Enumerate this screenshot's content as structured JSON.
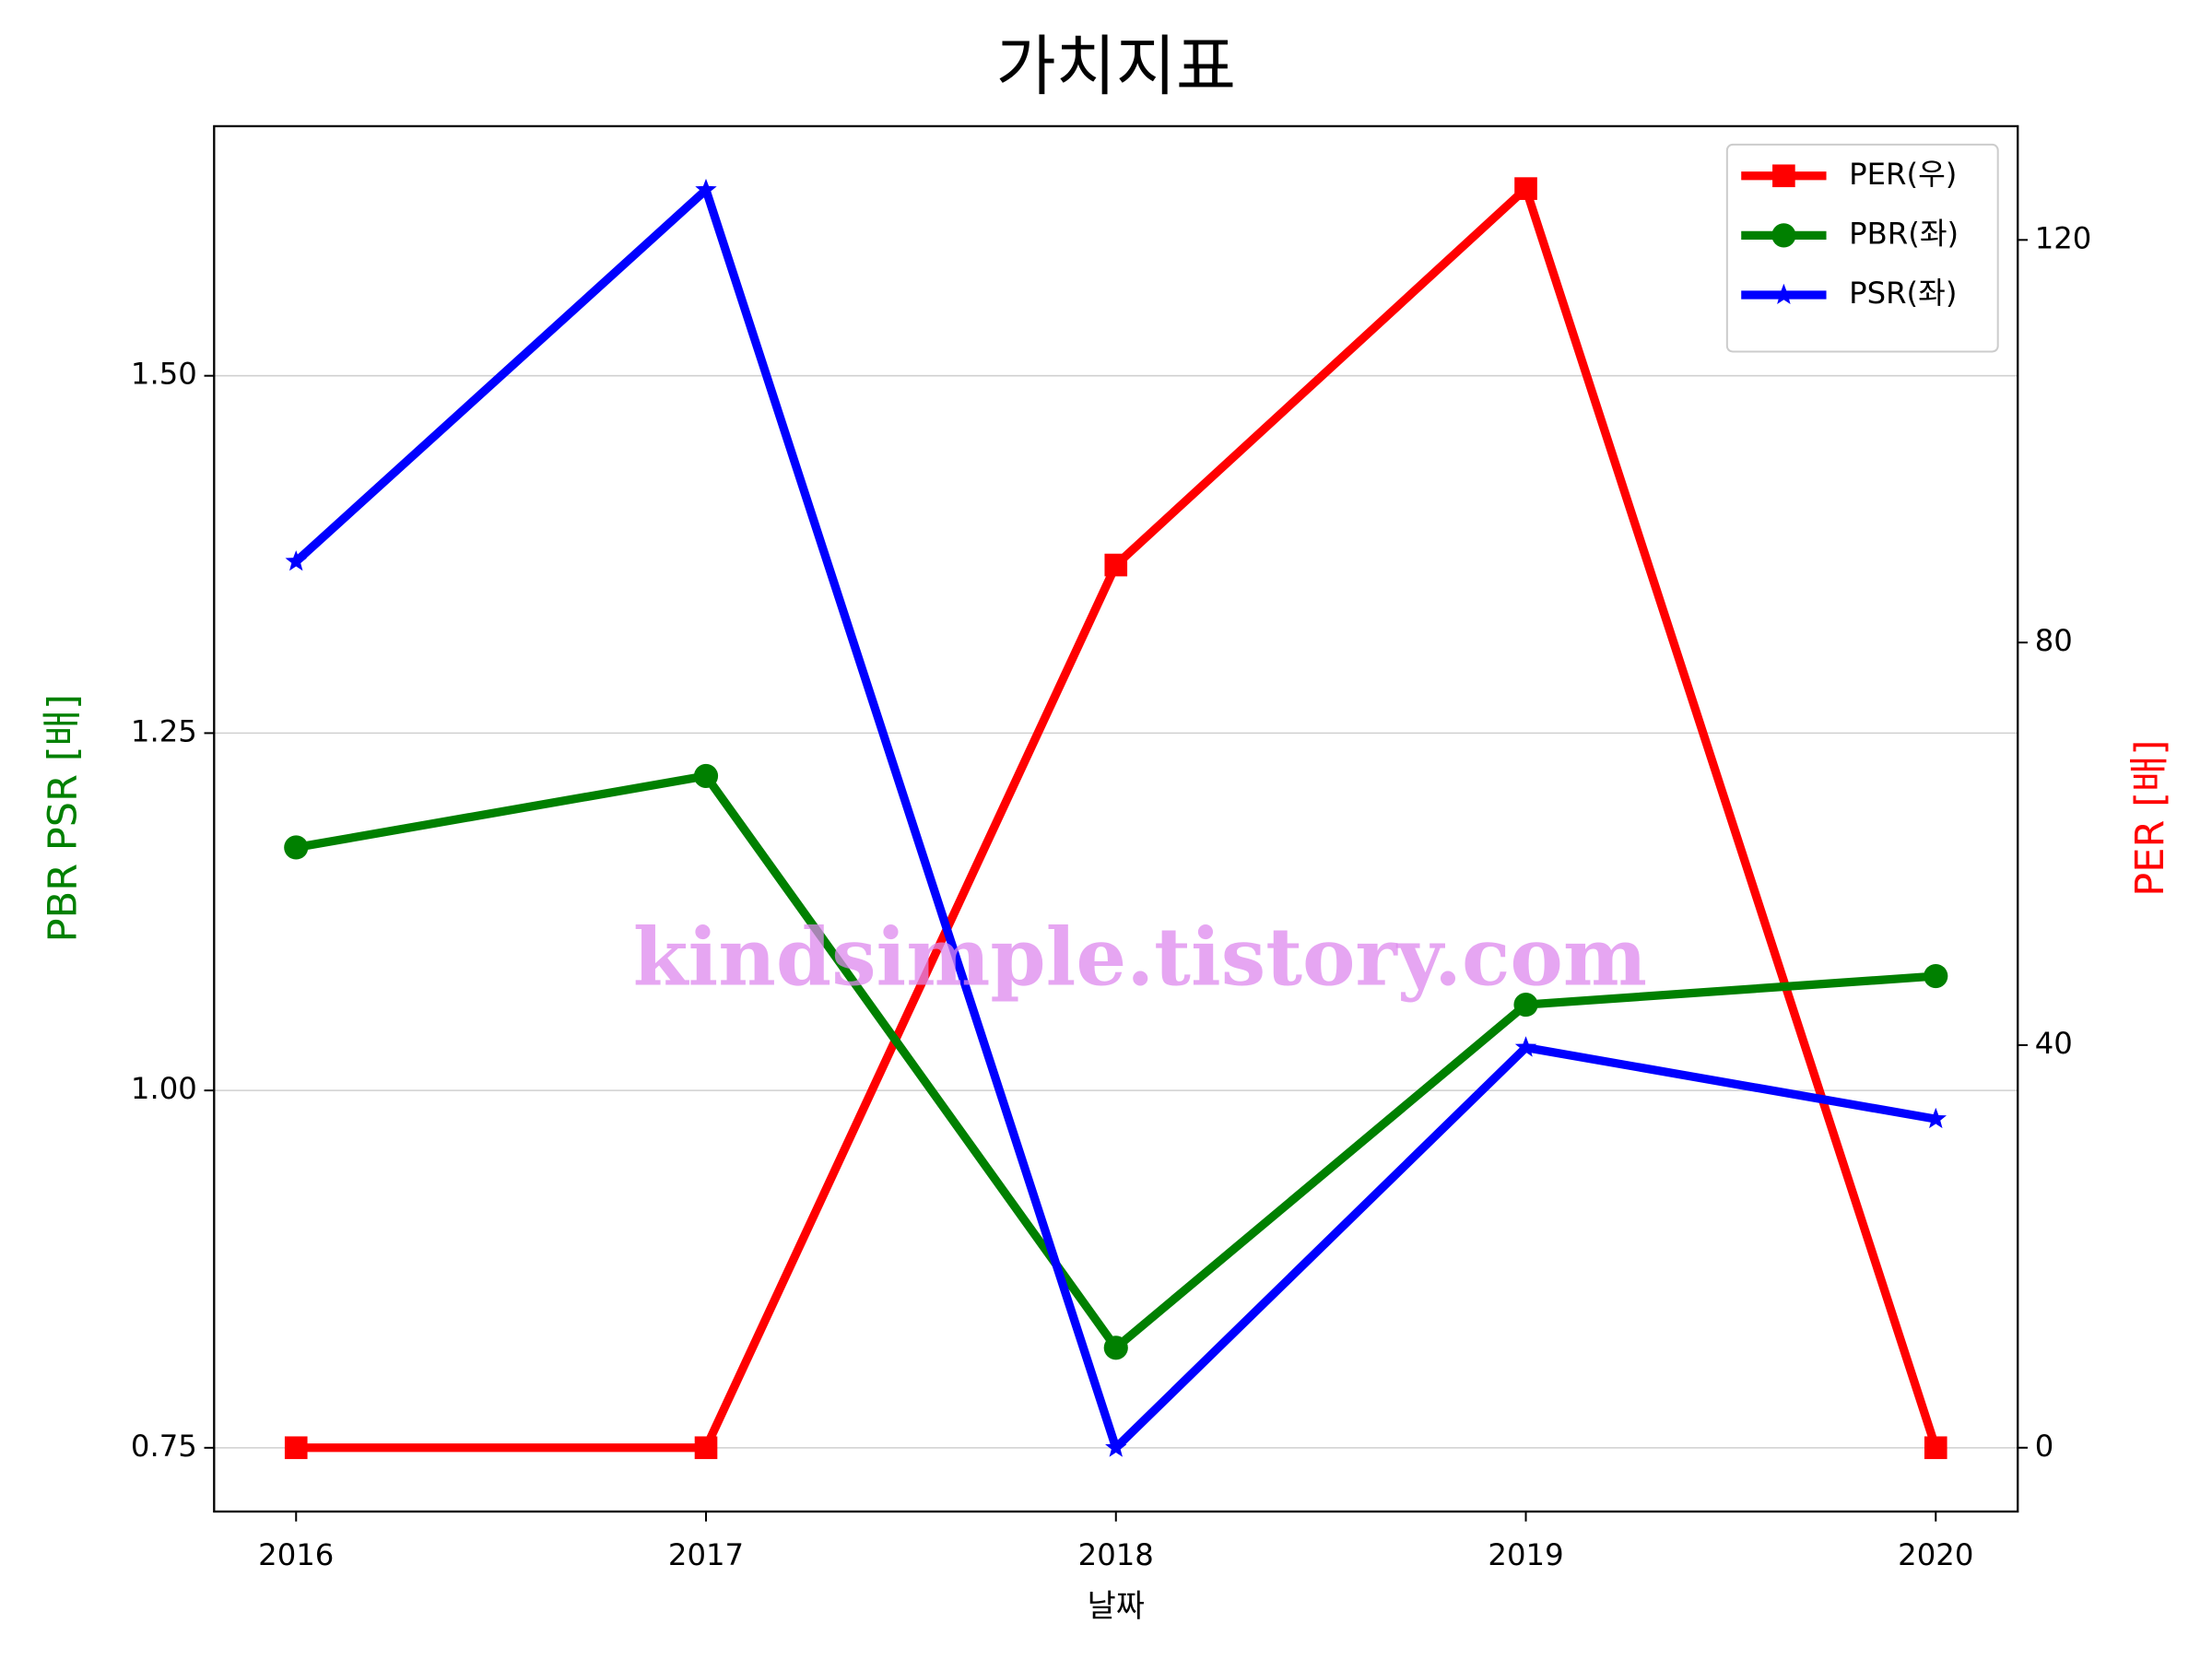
{
  "chart_data": {
    "type": "line",
    "title": "가치지표",
    "xlabel": "날짜",
    "ylabel": "PBR PSR [배]",
    "y2label": "PER [배]",
    "ylabel_color": "green",
    "y2label_color": "red",
    "x": [
      2016,
      2017,
      2018,
      2019,
      2020
    ],
    "xlim": [
      2015.8,
      2020.2
    ],
    "xticks": [
      2016,
      2017,
      2018,
      2019,
      2020
    ],
    "ylim": [
      0.7054,
      1.6746
    ],
    "yticks": [
      {
        "value": 0.75,
        "label": "0.75"
      },
      {
        "value": 1.0,
        "label": "1.00"
      },
      {
        "value": 1.25,
        "label": "1.25"
      },
      {
        "value": 1.5,
        "label": "1.50"
      }
    ],
    "y2lim": [
      -6.34,
      131.3
    ],
    "y2ticks": [
      0,
      40,
      80,
      120
    ],
    "grid": true,
    "legend": "upper right",
    "annotation": "kindsimple.tistory.com",
    "series": [
      {
        "name": "PER(우)",
        "color": "#ff0000",
        "marker": "square",
        "axis": "y2",
        "values": [
          0,
          0,
          87.7,
          125.1,
          0
        ]
      },
      {
        "name": "PBR(좌)",
        "color": "#008000",
        "marker": "circle",
        "values": [
          1.17,
          1.22,
          0.82,
          1.06,
          1.08
        ]
      },
      {
        "name": "PSR(좌)",
        "color": "#0000ff",
        "marker": "star",
        "values": [
          1.37,
          1.63,
          0.75,
          1.03,
          0.98
        ]
      }
    ]
  }
}
